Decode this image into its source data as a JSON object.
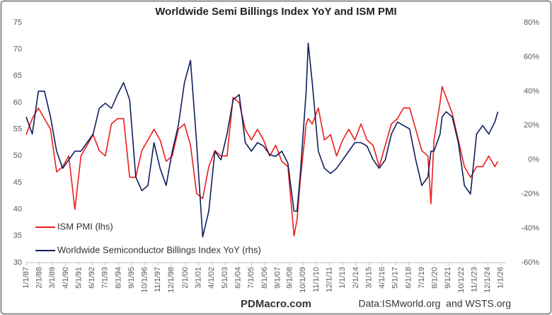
{
  "chart_data": {
    "type": "line",
    "title": "Worldwide Semi Billings Index YoY and ISM PMI",
    "source_left": "PDMacro.com",
    "source_right": "Data:ISMworld.org  and WSTS.org",
    "legend_position": "lower left",
    "grid": false,
    "x": [
      "1987-01-01",
      "1987-07-01",
      "1988-01-01",
      "1988-07-01",
      "1989-01-01",
      "1989-07-01",
      "1990-01-01",
      "1990-07-01",
      "1991-01-01",
      "1991-07-01",
      "1992-01-01",
      "1992-07-01",
      "1993-01-01",
      "1993-07-01",
      "1994-01-01",
      "1994-07-01",
      "1995-01-01",
      "1995-07-01",
      "1996-01-01",
      "1996-07-01",
      "1997-01-01",
      "1997-07-01",
      "1998-01-01",
      "1998-07-01",
      "1999-01-01",
      "1999-07-01",
      "2000-01-01",
      "2000-07-01",
      "2001-01-01",
      "2001-07-01",
      "2002-01-01",
      "2002-07-01",
      "2003-01-01",
      "2003-07-01",
      "2004-01-01",
      "2004-07-01",
      "2005-01-01",
      "2005-07-01",
      "2006-01-01",
      "2006-07-01",
      "2007-01-01",
      "2007-07-01",
      "2008-01-01",
      "2008-07-01",
      "2009-01-01",
      "2009-04-01",
      "2009-07-01",
      "2010-01-01",
      "2010-03-01",
      "2010-07-01",
      "2011-01-01",
      "2011-07-01",
      "2012-01-01",
      "2012-07-01",
      "2013-01-01",
      "2013-07-01",
      "2014-01-01",
      "2014-07-01",
      "2015-01-01",
      "2015-07-01",
      "2016-01-01",
      "2016-07-01",
      "2017-01-01",
      "2017-07-01",
      "2018-01-01",
      "2018-07-01",
      "2019-01-01",
      "2019-07-01",
      "2020-01-01",
      "2020-04-01",
      "2020-07-01",
      "2021-01-01",
      "2021-03-01",
      "2021-07-01",
      "2022-01-01",
      "2022-07-01",
      "2023-01-01",
      "2023-07-01",
      "2024-01-01",
      "2024-07-01",
      "2025-01-01",
      "2025-07-01",
      "2025-10-01"
    ],
    "xlim": [
      "1987-01-01",
      "2026-06-01"
    ],
    "xticks": [
      {
        "value": "1987-01-01",
        "label": "1/1/87"
      },
      {
        "value": "1988-02-01",
        "label": "2/1/88"
      },
      {
        "value": "1989-03-01",
        "label": "3/1/89"
      },
      {
        "value": "1990-04-01",
        "label": "4/1/90"
      },
      {
        "value": "1991-05-01",
        "label": "5/1/91"
      },
      {
        "value": "1992-06-01",
        "label": "6/1/92"
      },
      {
        "value": "1993-07-01",
        "label": "7/1/93"
      },
      {
        "value": "1994-08-01",
        "label": "8/1/94"
      },
      {
        "value": "1995-09-01",
        "label": "9/1/95"
      },
      {
        "value": "1996-10-01",
        "label": "10/1/96"
      },
      {
        "value": "1997-11-01",
        "label": "11/1/97"
      },
      {
        "value": "1998-12-01",
        "label": "12/1/98"
      },
      {
        "value": "2000-02-01",
        "label": "2/1/00"
      },
      {
        "value": "2001-03-01",
        "label": "3/1/01"
      },
      {
        "value": "2002-04-01",
        "label": "4/1/02"
      },
      {
        "value": "2003-05-01",
        "label": "5/1/03"
      },
      {
        "value": "2004-06-01",
        "label": "6/1/04"
      },
      {
        "value": "2005-07-01",
        "label": "7/1/05"
      },
      {
        "value": "2006-08-01",
        "label": "8/1/06"
      },
      {
        "value": "2007-09-01",
        "label": "9/1/07"
      },
      {
        "value": "2008-09-01",
        "label": "9/1/08"
      },
      {
        "value": "2009-10-01",
        "label": "10/1/09"
      },
      {
        "value": "2010-11-01",
        "label": "11/1/10"
      },
      {
        "value": "2011-12-01",
        "label": "12/1/11"
      },
      {
        "value": "2013-01-01",
        "label": "1/1/13"
      },
      {
        "value": "2014-02-01",
        "label": "2/1/14"
      },
      {
        "value": "2015-03-01",
        "label": "3/1/15"
      },
      {
        "value": "2016-04-01",
        "label": "4/1/16"
      },
      {
        "value": "2017-05-01",
        "label": "5/1/17"
      },
      {
        "value": "2018-06-01",
        "label": "6/1/18"
      },
      {
        "value": "2019-07-01",
        "label": "7/1/19"
      },
      {
        "value": "2020-08-01",
        "label": "8/1/20"
      },
      {
        "value": "2021-09-01",
        "label": "9/1/21"
      },
      {
        "value": "2022-10-01",
        "label": "10/1/22"
      },
      {
        "value": "2023-11-01",
        "label": "11/1/23"
      },
      {
        "value": "2024-12-01",
        "label": "12/1/24"
      },
      {
        "value": "2026-01-01",
        "label": "1/1/26"
      }
    ],
    "ylim": [
      30,
      75
    ],
    "yticks": [
      30,
      35,
      40,
      45,
      50,
      55,
      60,
      65,
      70,
      75
    ],
    "y2lim": [
      -60,
      80
    ],
    "y2ticks": [
      {
        "value": -60,
        "label": "-60%"
      },
      {
        "value": -40,
        "label": "-40%"
      },
      {
        "value": -20,
        "label": "-20%"
      },
      {
        "value": 0,
        "label": "0%"
      },
      {
        "value": 20,
        "label": "20%"
      },
      {
        "value": 40,
        "label": "40%"
      },
      {
        "value": 60,
        "label": "60%"
      },
      {
        "value": 80,
        "label": "80%"
      }
    ],
    "series": [
      {
        "name": "ISM PMI (lhs)",
        "color": "#ee1c1c",
        "values": [
          54,
          57,
          59,
          57,
          55,
          47,
          48,
          50,
          40,
          50,
          52,
          54,
          51,
          50,
          56,
          57,
          57,
          46,
          46,
          51,
          53,
          55,
          53,
          49,
          50,
          55,
          56,
          52,
          43,
          42,
          48,
          51,
          50,
          50,
          61,
          60,
          55,
          53,
          55,
          53,
          50,
          52,
          49,
          48,
          35,
          38,
          45,
          56,
          57,
          56,
          59,
          53,
          54,
          50,
          53,
          55,
          53,
          56,
          53,
          52,
          48,
          52,
          56,
          57,
          59,
          59,
          55,
          51,
          50,
          41,
          53,
          60,
          63,
          61,
          58,
          53,
          48,
          46,
          48,
          48,
          50,
          48,
          49
        ]
      },
      {
        "name": "Worldwide Semiconductor Billings Index YoY (rhs)",
        "color": "#0d1f5c",
        "axis": "y2",
        "values": [
          25,
          15,
          40,
          40,
          25,
          5,
          -5,
          0,
          5,
          5,
          10,
          15,
          30,
          33,
          30,
          38,
          45,
          35,
          -10,
          -18,
          -15,
          10,
          -5,
          -15,
          5,
          20,
          45,
          58,
          10,
          -45,
          -30,
          5,
          0,
          15,
          35,
          38,
          10,
          5,
          10,
          8,
          3,
          2,
          5,
          -2,
          -30,
          -30,
          -10,
          40,
          68,
          45,
          5,
          -5,
          -8,
          -5,
          0,
          5,
          10,
          10,
          8,
          0,
          -5,
          0,
          15,
          22,
          20,
          18,
          0,
          -15,
          -10,
          5,
          5,
          15,
          25,
          28,
          25,
          10,
          -15,
          -20,
          15,
          20,
          15,
          22,
          28
        ]
      }
    ]
  }
}
